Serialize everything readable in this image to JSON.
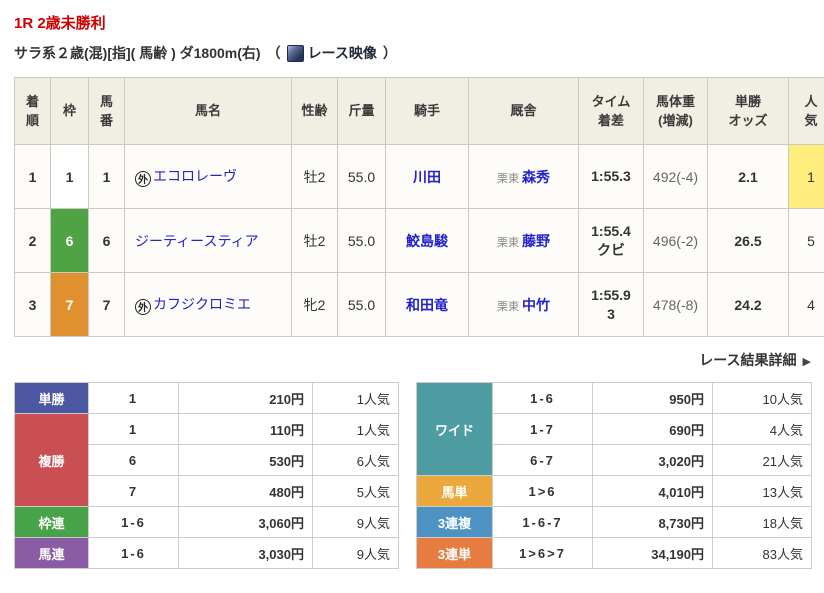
{
  "page": {
    "title": "1R 2歳未勝利",
    "conditions": "サラ系２歳(混)[指]( 馬齢 ) ダ1800m(右)",
    "paren_open": "（",
    "paren_close": "）",
    "video_label": "レース映像",
    "details_link": "レース結果詳細",
    "details_arrow": "▶"
  },
  "colors": {
    "title_red": "#cc0000",
    "link_blue": "#2323cc",
    "highlight_yellow": "#ffee7d",
    "header_beige": "#f1eee4"
  },
  "results": {
    "columns": {
      "rank": "着\n順",
      "frame": "枠",
      "horse_no": "馬\n番",
      "horse": "馬名",
      "sex_age": "性齢",
      "weight": "斤量",
      "jockey": "騎手",
      "stable": "厩舎",
      "time": "タイム\n着差",
      "horse_weight": "馬体重\n(増減)",
      "odds": "単勝\nオッズ",
      "popularity": "人\n気"
    },
    "rows": [
      {
        "rank": "1",
        "frame": "1",
        "frame_bg": "#ffffff",
        "frame_fg": "#333333",
        "horse_no": "1",
        "gai": "外",
        "horse": "エコロレーヴ",
        "sex_age": "牡2",
        "weight": "55.0",
        "jockey": "川田",
        "area": "栗東",
        "trainer": "森秀",
        "time": "1:55.3",
        "margin": "",
        "horse_weight": "492(-4)",
        "odds": "2.1",
        "popularity": "1",
        "pop_bg": "#ffee7d"
      },
      {
        "rank": "2",
        "frame": "6",
        "frame_bg": "#4fa345",
        "frame_fg": "#ffffff",
        "horse_no": "6",
        "gai": "",
        "horse": "ジーティースティア",
        "sex_age": "牡2",
        "weight": "55.0",
        "jockey": "鮫島駿",
        "area": "栗東",
        "trainer": "藤野",
        "time": "1:55.4",
        "margin": "クビ",
        "horse_weight": "496(-2)",
        "odds": "26.5",
        "popularity": "5",
        "pop_bg": ""
      },
      {
        "rank": "3",
        "frame": "7",
        "frame_bg": "#e0912f",
        "frame_fg": "#ffffff",
        "horse_no": "7",
        "gai": "外",
        "horse": "カフジクロミエ",
        "sex_age": "牝2",
        "weight": "55.0",
        "jockey": "和田竜",
        "area": "栗東",
        "trainer": "中竹",
        "time": "1:55.9",
        "margin": "3",
        "horse_weight": "478(-8)",
        "odds": "24.2",
        "popularity": "4",
        "pop_bg": ""
      }
    ]
  },
  "payout_left": {
    "groups": [
      {
        "label": "単勝",
        "color": "#4d58a3",
        "rows": [
          {
            "comb": "1",
            "pay": "210円",
            "pop": "1人気"
          }
        ]
      },
      {
        "label": "複勝",
        "color": "#c94f52",
        "rows": [
          {
            "comb": "1",
            "pay": "110円",
            "pop": "1人気"
          },
          {
            "comb": "6",
            "pay": "530円",
            "pop": "6人気"
          },
          {
            "comb": "7",
            "pay": "480円",
            "pop": "5人気"
          }
        ]
      },
      {
        "label": "枠連",
        "color": "#47a347",
        "rows": [
          {
            "comb": "1-6",
            "pay": "3,060円",
            "pop": "9人気"
          }
        ]
      },
      {
        "label": "馬連",
        "color": "#8a5ca5",
        "rows": [
          {
            "comb": "1-6",
            "pay": "3,030円",
            "pop": "9人気"
          }
        ]
      }
    ]
  },
  "payout_right": {
    "groups": [
      {
        "label": "ワイド",
        "color": "#4d9da2",
        "rows": [
          {
            "comb": "1-6",
            "pay": "950円",
            "pop": "10人気"
          },
          {
            "comb": "1-7",
            "pay": "690円",
            "pop": "4人気"
          },
          {
            "comb": "6-7",
            "pay": "3,020円",
            "pop": "21人気"
          }
        ]
      },
      {
        "label": "馬単",
        "color": "#eca83c",
        "rows": [
          {
            "comb": "1>6",
            "pay": "4,010円",
            "pop": "13人気"
          }
        ]
      },
      {
        "label": "3連複",
        "color": "#4d92c3",
        "rows": [
          {
            "comb": "1-6-7",
            "pay": "8,730円",
            "pop": "18人気"
          }
        ]
      },
      {
        "label": "3連単",
        "color": "#e67c3f",
        "rows": [
          {
            "comb": "1>6>7",
            "pay": "34,190円",
            "pop": "83人気"
          }
        ]
      }
    ]
  }
}
